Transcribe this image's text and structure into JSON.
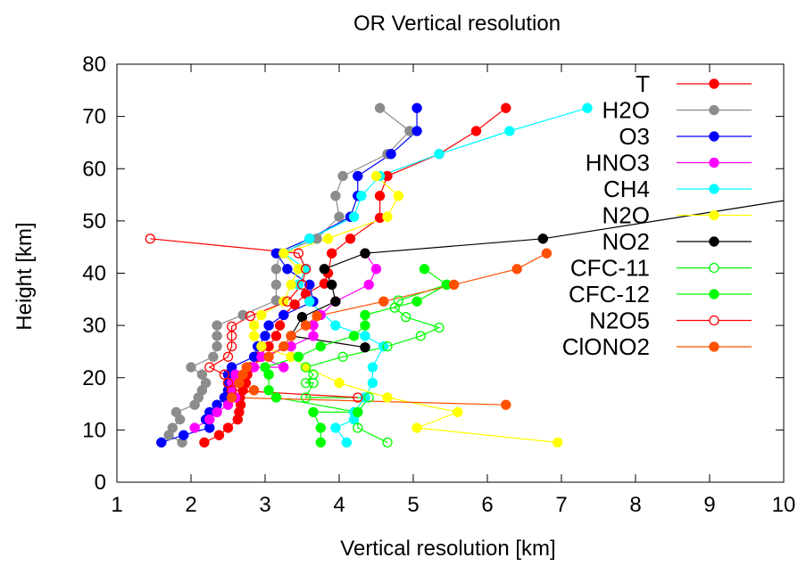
{
  "chart_data": {
    "type": "line",
    "title": "OR Vertical resolution",
    "xlabel": "Vertical resolution [km]",
    "ylabel": "Height [km]",
    "xlim": [
      1,
      10
    ],
    "ylim": [
      0,
      80
    ],
    "xticks": [
      1,
      2,
      3,
      4,
      5,
      6,
      7,
      8,
      9,
      10
    ],
    "yticks": [
      0,
      10,
      20,
      30,
      40,
      50,
      60,
      70,
      80
    ],
    "grid": false,
    "legend_position": "top-right",
    "series": [
      {
        "name": "T",
        "color": "#ff0000",
        "marker": "filled",
        "points": [
          [
            2.18,
            7.6
          ],
          [
            2.38,
            9.0
          ],
          [
            2.5,
            10.4
          ],
          [
            2.63,
            12.0
          ],
          [
            2.65,
            13.4
          ],
          [
            2.67,
            14.8
          ],
          [
            2.66,
            16.2
          ],
          [
            2.7,
            17.6
          ],
          [
            2.74,
            19.0
          ],
          [
            2.76,
            20.6
          ],
          [
            2.8,
            22.0
          ],
          [
            2.9,
            24.0
          ],
          [
            3.05,
            26.0
          ],
          [
            3.15,
            28.0
          ],
          [
            3.2,
            30.0
          ],
          [
            3.25,
            32.0
          ],
          [
            3.4,
            34.0
          ],
          [
            3.55,
            36.0
          ],
          [
            3.8,
            38.0
          ],
          [
            3.85,
            40.0
          ],
          [
            3.9,
            43.8
          ],
          [
            4.15,
            46.6
          ],
          [
            4.55,
            50.6
          ],
          [
            4.55,
            54.8
          ],
          [
            4.65,
            58.6
          ],
          [
            5.35,
            62.8
          ],
          [
            5.85,
            67.2
          ],
          [
            6.25,
            71.6
          ]
        ]
      },
      {
        "name": "H2O",
        "color": "#8c8c8c",
        "marker": "filled",
        "points": [
          [
            1.88,
            7.6
          ],
          [
            1.7,
            9.0
          ],
          [
            1.75,
            10.4
          ],
          [
            1.85,
            12.0
          ],
          [
            1.8,
            13.4
          ],
          [
            2.05,
            14.8
          ],
          [
            2.1,
            16.2
          ],
          [
            2.15,
            17.6
          ],
          [
            2.2,
            19.0
          ],
          [
            2.15,
            20.6
          ],
          [
            2.0,
            22.0
          ],
          [
            2.3,
            24.0
          ],
          [
            2.35,
            26.0
          ],
          [
            2.35,
            28.0
          ],
          [
            2.35,
            30.0
          ],
          [
            2.7,
            32.0
          ],
          [
            3.15,
            34.8
          ],
          [
            3.15,
            37.8
          ],
          [
            3.15,
            40.8
          ],
          [
            3.2,
            43.8
          ],
          [
            3.7,
            46.6
          ],
          [
            4.0,
            50.8
          ],
          [
            3.95,
            54.8
          ],
          [
            4.05,
            58.6
          ],
          [
            4.65,
            62.8
          ],
          [
            4.95,
            67.2
          ],
          [
            4.55,
            71.6
          ]
        ]
      },
      {
        "name": "O3",
        "color": "#0000ff",
        "marker": "filled",
        "points": [
          [
            1.6,
            7.6
          ],
          [
            1.9,
            9.0
          ],
          [
            2.25,
            10.4
          ],
          [
            2.2,
            12.0
          ],
          [
            2.25,
            13.4
          ],
          [
            2.35,
            14.8
          ],
          [
            2.45,
            16.2
          ],
          [
            2.5,
            17.6
          ],
          [
            2.5,
            19.0
          ],
          [
            2.5,
            20.6
          ],
          [
            2.55,
            22.0
          ],
          [
            2.85,
            24.0
          ],
          [
            2.9,
            26.0
          ],
          [
            3.0,
            28.0
          ],
          [
            3.05,
            30.0
          ],
          [
            3.25,
            32.0
          ],
          [
            3.65,
            34.6
          ],
          [
            3.6,
            37.8
          ],
          [
            3.3,
            40.8
          ],
          [
            3.15,
            43.8
          ],
          [
            3.6,
            46.6
          ],
          [
            4.15,
            50.8
          ],
          [
            4.25,
            54.8
          ],
          [
            4.25,
            58.6
          ],
          [
            4.7,
            62.8
          ],
          [
            5.05,
            67.2
          ],
          [
            5.05,
            71.6
          ]
        ]
      },
      {
        "name": "HNO3",
        "color": "#ff00ff",
        "marker": "filled",
        "points": [
          [
            2.05,
            10.4
          ],
          [
            2.25,
            12.0
          ],
          [
            2.35,
            13.4
          ],
          [
            2.5,
            14.8
          ],
          [
            2.6,
            16.2
          ],
          [
            2.55,
            17.6
          ],
          [
            2.55,
            19.0
          ],
          [
            2.6,
            20.6
          ],
          [
            2.85,
            22.0
          ],
          [
            3.25,
            22.0
          ],
          [
            2.95,
            24.0
          ],
          [
            3.35,
            26.0
          ],
          [
            3.65,
            28.0
          ],
          [
            3.65,
            30.0
          ],
          [
            3.75,
            32.0
          ],
          [
            3.95,
            34.6
          ],
          [
            4.4,
            37.8
          ],
          [
            4.5,
            40.8
          ],
          [
            4.35,
            43.8
          ]
        ]
      },
      {
        "name": "CH4",
        "color": "#00ffff",
        "marker": "filled",
        "points": [
          [
            4.1,
            7.6
          ],
          [
            3.95,
            10.4
          ],
          [
            4.2,
            12.0
          ],
          [
            4.2,
            13.4
          ],
          [
            4.35,
            16.2
          ],
          [
            4.45,
            19.0
          ],
          [
            4.45,
            22.0
          ],
          [
            4.6,
            26.0
          ],
          [
            4.35,
            28.0
          ],
          [
            3.95,
            30.0
          ],
          [
            3.6,
            34.6
          ],
          [
            3.45,
            37.8
          ],
          [
            3.55,
            40.8
          ],
          [
            3.25,
            43.8
          ],
          [
            3.6,
            46.6
          ],
          [
            4.2,
            50.8
          ],
          [
            4.3,
            54.8
          ],
          [
            4.55,
            58.6
          ],
          [
            5.35,
            62.8
          ],
          [
            6.3,
            67.2
          ],
          [
            7.35,
            71.6
          ]
        ]
      },
      {
        "name": "N2O",
        "color": "#ffff00",
        "marker": "filled",
        "points": [
          [
            6.95,
            7.6
          ],
          [
            5.05,
            10.4
          ],
          [
            5.6,
            13.4
          ],
          [
            4.65,
            16.2
          ],
          [
            4.0,
            19.0
          ],
          [
            3.55,
            22.0
          ],
          [
            3.35,
            24.0
          ],
          [
            2.95,
            26.0
          ],
          [
            2.85,
            28.0
          ],
          [
            2.85,
            30.0
          ],
          [
            2.95,
            32.0
          ],
          [
            3.25,
            34.6
          ],
          [
            3.35,
            37.8
          ],
          [
            3.45,
            40.8
          ],
          [
            3.25,
            43.8
          ],
          [
            3.85,
            46.6
          ],
          [
            4.65,
            50.8
          ],
          [
            4.8,
            54.8
          ],
          [
            4.5,
            58.6
          ]
        ]
      },
      {
        "name": "NO2",
        "color": "#000000",
        "marker": "filled",
        "points": [
          [
            4.35,
            25.8
          ],
          [
            3.35,
            28.0
          ],
          [
            3.5,
            31.6
          ],
          [
            3.95,
            34.6
          ],
          [
            3.9,
            37.8
          ],
          [
            3.8,
            40.8
          ],
          [
            4.35,
            43.8
          ],
          [
            6.75,
            46.6
          ],
          [
            10.5,
            55.0
          ]
        ]
      },
      {
        "name": "CFC-11",
        "color": "#00ff00",
        "marker": "open",
        "points": [
          [
            4.65,
            7.6
          ],
          [
            4.25,
            10.4
          ],
          [
            4.25,
            13.4
          ],
          [
            4.4,
            16.2
          ],
          [
            3.55,
            16.2
          ],
          [
            3.65,
            19.0
          ],
          [
            3.55,
            19.0
          ],
          [
            3.65,
            20.6
          ],
          [
            3.55,
            22.0
          ],
          [
            4.05,
            24.0
          ],
          [
            4.65,
            26.0
          ],
          [
            5.1,
            28.0
          ],
          [
            5.35,
            29.6
          ],
          [
            4.9,
            31.6
          ],
          [
            4.75,
            33.4
          ],
          [
            4.8,
            34.8
          ],
          [
            5.45,
            37.8
          ]
        ]
      },
      {
        "name": "CFC-12",
        "color": "#00ff00",
        "marker": "filled",
        "points": [
          [
            3.75,
            7.6
          ],
          [
            3.75,
            10.4
          ],
          [
            3.65,
            13.4
          ],
          [
            4.25,
            13.4
          ],
          [
            3.15,
            16.2
          ],
          [
            3.05,
            17.6
          ],
          [
            3.05,
            20.6
          ],
          [
            3.0,
            22.0
          ],
          [
            3.45,
            24.0
          ],
          [
            3.75,
            26.0
          ],
          [
            4.2,
            28.0
          ],
          [
            4.35,
            30.0
          ],
          [
            4.35,
            32.0
          ],
          [
            5.05,
            34.6
          ],
          [
            5.45,
            37.8
          ],
          [
            5.15,
            40.8
          ]
        ]
      },
      {
        "name": "N2O5",
        "color": "#ff0000",
        "marker": "open",
        "points": [
          [
            4.25,
            16.2
          ],
          [
            2.55,
            17.6
          ],
          [
            2.5,
            19.0
          ],
          [
            2.45,
            20.6
          ],
          [
            2.25,
            22.0
          ],
          [
            2.5,
            24.0
          ],
          [
            2.55,
            26.0
          ],
          [
            2.55,
            28.0
          ],
          [
            2.55,
            29.8
          ],
          [
            2.8,
            31.8
          ],
          [
            3.3,
            34.6
          ],
          [
            3.5,
            37.8
          ],
          [
            3.55,
            40.8
          ],
          [
            3.45,
            43.8
          ],
          [
            1.45,
            46.6
          ]
        ]
      },
      {
        "name": "ClONO2",
        "color": "#ff5000",
        "marker": "filled",
        "points": [
          [
            6.25,
            14.8
          ],
          [
            2.55,
            16.2
          ],
          [
            2.85,
            17.6
          ],
          [
            2.65,
            19.0
          ],
          [
            2.7,
            20.6
          ],
          [
            2.75,
            22.0
          ],
          [
            3.05,
            24.0
          ],
          [
            3.25,
            26.0
          ],
          [
            3.35,
            28.0
          ],
          [
            3.55,
            30.0
          ],
          [
            3.7,
            31.8
          ],
          [
            4.6,
            34.6
          ],
          [
            5.55,
            37.8
          ],
          [
            6.4,
            40.8
          ],
          [
            6.8,
            43.8
          ]
        ]
      }
    ]
  }
}
